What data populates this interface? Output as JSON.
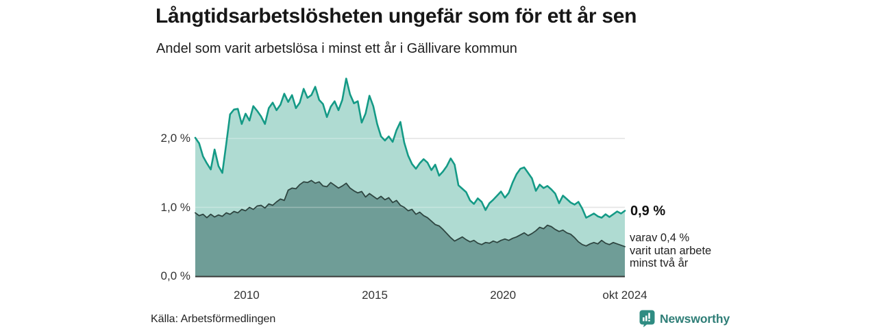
{
  "chart_data": {
    "type": "area",
    "title": "Långtidsarbetslösheten ungefär som för ett år sen",
    "subtitle": "Andel som varit arbetslösa i minst ett år i Gällivare kommun",
    "x_start": 2008.0,
    "x_end": 2024.75,
    "x_unit": "year (monthly series ending okt 2024)",
    "ylim": [
      0,
      3.0
    ],
    "grid": "horizontal",
    "ytick_values": [
      0,
      1,
      2
    ],
    "ytick_labels": [
      "0,0 %",
      "1,0 %",
      "2,0 %"
    ],
    "xtick_values": [
      2010,
      2015,
      2020,
      2024.75
    ],
    "xtick_labels": [
      "2010",
      "2015",
      "2020",
      "okt 2024"
    ],
    "series": [
      {
        "name": "Andel som varit arbetslösa i minst ett år",
        "color_fill": "#afdbd2",
        "color_line": "#149a86",
        "values": [
          2.01,
          1.93,
          1.74,
          1.64,
          1.55,
          1.84,
          1.6,
          1.5,
          1.92,
          2.35,
          2.42,
          2.43,
          2.21,
          2.36,
          2.26,
          2.47,
          2.4,
          2.32,
          2.21,
          2.44,
          2.52,
          2.41,
          2.49,
          2.65,
          2.53,
          2.63,
          2.44,
          2.52,
          2.72,
          2.59,
          2.63,
          2.75,
          2.56,
          2.5,
          2.31,
          2.46,
          2.54,
          2.41,
          2.56,
          2.87,
          2.64,
          2.51,
          2.54,
          2.23,
          2.36,
          2.62,
          2.47,
          2.21,
          2.03,
          1.97,
          2.03,
          1.95,
          2.12,
          2.24,
          1.94,
          1.75,
          1.63,
          1.56,
          1.64,
          1.7,
          1.65,
          1.54,
          1.62,
          1.46,
          1.52,
          1.6,
          1.71,
          1.62,
          1.32,
          1.27,
          1.22,
          1.1,
          1.05,
          1.13,
          1.08,
          0.96,
          1.06,
          1.11,
          1.17,
          1.23,
          1.14,
          1.21,
          1.36,
          1.48,
          1.56,
          1.58,
          1.5,
          1.42,
          1.24,
          1.33,
          1.28,
          1.31,
          1.26,
          1.2,
          1.06,
          1.17,
          1.12,
          1.07,
          1.04,
          1.08,
          0.98,
          0.85,
          0.88,
          0.91,
          0.87,
          0.85,
          0.9,
          0.86,
          0.9,
          0.94,
          0.91,
          0.95
        ]
      },
      {
        "name": "varav utan arbete minst två år",
        "color_fill": "#6f9d97",
        "color_line": "#2e4540",
        "values": [
          0.92,
          0.88,
          0.9,
          0.85,
          0.9,
          0.86,
          0.89,
          0.87,
          0.92,
          0.9,
          0.94,
          0.92,
          0.97,
          0.95,
          1.0,
          0.97,
          1.02,
          1.03,
          0.99,
          1.05,
          1.03,
          1.08,
          1.12,
          1.1,
          1.25,
          1.28,
          1.27,
          1.33,
          1.37,
          1.36,
          1.39,
          1.35,
          1.37,
          1.31,
          1.3,
          1.36,
          1.32,
          1.28,
          1.31,
          1.35,
          1.28,
          1.24,
          1.21,
          1.23,
          1.15,
          1.2,
          1.16,
          1.12,
          1.16,
          1.11,
          1.14,
          1.07,
          1.1,
          1.03,
          1.0,
          0.95,
          0.97,
          0.9,
          0.93,
          0.88,
          0.85,
          0.8,
          0.75,
          0.73,
          0.68,
          0.62,
          0.56,
          0.51,
          0.54,
          0.57,
          0.53,
          0.5,
          0.52,
          0.48,
          0.46,
          0.49,
          0.48,
          0.51,
          0.49,
          0.52,
          0.54,
          0.52,
          0.55,
          0.57,
          0.6,
          0.63,
          0.59,
          0.62,
          0.66,
          0.71,
          0.69,
          0.74,
          0.72,
          0.68,
          0.65,
          0.67,
          0.63,
          0.61,
          0.56,
          0.5,
          0.46,
          0.44,
          0.47,
          0.49,
          0.47,
          0.52,
          0.48,
          0.46,
          0.49,
          0.47,
          0.45,
          0.43
        ]
      }
    ],
    "end_labels": {
      "primary": "0,9 %",
      "secondary": [
        "varav 0,4 %",
        "varit utan arbete",
        "minst två år"
      ]
    }
  },
  "footer": {
    "source": "Källa: Arbetsförmedlingen",
    "brand": "Newsworthy",
    "brand_color": "#2f7e77"
  }
}
